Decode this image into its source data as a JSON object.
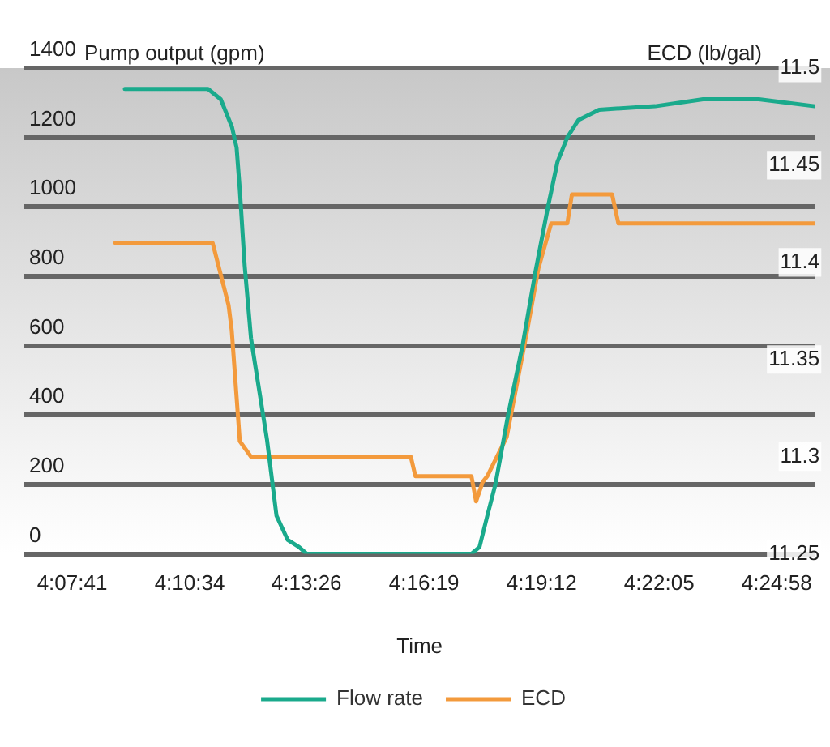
{
  "chart_data": {
    "type": "line",
    "xlabel": "Time",
    "ylabel": "Pump output (gpm)",
    "y2label": "ECD (lb/gal)",
    "xlim": [
      4.1085,
      4.4317
    ],
    "xticks": [
      {
        "value": 4.128056,
        "label": "4:07:41"
      },
      {
        "value": 4.176111,
        "label": "4:10:34"
      },
      {
        "value": 4.223889,
        "label": "4:13:26"
      },
      {
        "value": 4.271944,
        "label": "4:16:19"
      },
      {
        "value": 4.32,
        "label": "4:19:12"
      },
      {
        "value": 4.368056,
        "label": "4:22:05"
      },
      {
        "value": 4.416111,
        "label": "4:24:58"
      }
    ],
    "ylim": [
      0,
      1400
    ],
    "yticks": [
      0,
      200,
      400,
      600,
      800,
      1000,
      1200,
      1400
    ],
    "y2lim": [
      11.25,
      11.5
    ],
    "y2ticks": [
      11.25,
      11.3,
      11.35,
      11.4,
      11.45,
      11.5
    ],
    "grid": "y",
    "legend": "bottom",
    "marker": "none",
    "line_style": "solid",
    "series": [
      {
        "name": "Flow rate",
        "color": "#1aaa8c",
        "x": [
          4.1496,
          4.1836,
          4.1888,
          4.1934,
          4.1953,
          4.1966,
          4.1986,
          4.2012,
          4.2077,
          4.2116,
          4.2162,
          4.2208,
          4.224,
          4.2913,
          4.2946,
          4.2978,
          4.3011,
          4.3063,
          4.3122,
          4.3174,
          4.3226,
          4.3265,
          4.3305,
          4.335,
          4.3435,
          4.3664,
          4.386,
          4.4088,
          4.4317
        ],
        "values": [
          1340,
          1340,
          1310,
          1230,
          1170,
          1050,
          830,
          620,
          330,
          110,
          40,
          20,
          0,
          0,
          20,
          110,
          200,
          400,
          600,
          810,
          1000,
          1130,
          1200,
          1250,
          1280,
          1290,
          1310,
          1310,
          1290
        ]
      },
      {
        "name": "ECD",
        "color": "#f39a3c",
        "axis": "y2",
        "x": [
          4.1457,
          4.1855,
          4.192,
          4.1933,
          4.1966,
          4.2012,
          4.2665,
          4.2684,
          4.2913,
          4.2932,
          4.2959,
          4.2978,
          4.3057,
          4.3141,
          4.3187,
          4.3239,
          4.3305,
          4.3324,
          4.3488,
          4.3514,
          4.4317
        ],
        "values": [
          11.41,
          11.41,
          11.378,
          11.365,
          11.308,
          11.3,
          11.3,
          11.29,
          11.29,
          11.277,
          11.287,
          11.29,
          11.31,
          11.365,
          11.397,
          11.42,
          11.42,
          11.435,
          11.435,
          11.42,
          11.42
        ]
      }
    ]
  }
}
